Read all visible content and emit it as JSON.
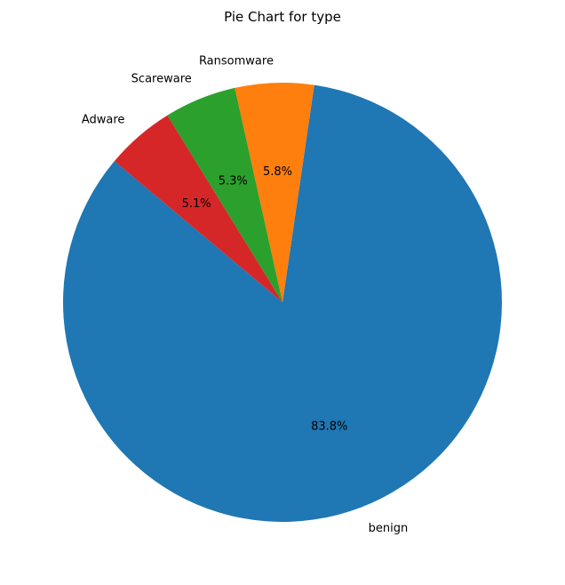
{
  "chart_data": {
    "type": "pie",
    "title": "Pie Chart for type",
    "categories": [
      "benign",
      "Ransomware",
      "Scareware",
      "Adware"
    ],
    "values": [
      83.8,
      5.8,
      5.3,
      5.1
    ],
    "percent_labels": [
      "83.8%",
      "5.8%",
      "5.3%",
      "5.1%"
    ],
    "colors": [
      "#1f77b4",
      "#ff7f0e",
      "#2ca02c",
      "#d62728"
    ],
    "start_angle_deg": 140,
    "direction": "counterclockwise",
    "legend": "none"
  }
}
